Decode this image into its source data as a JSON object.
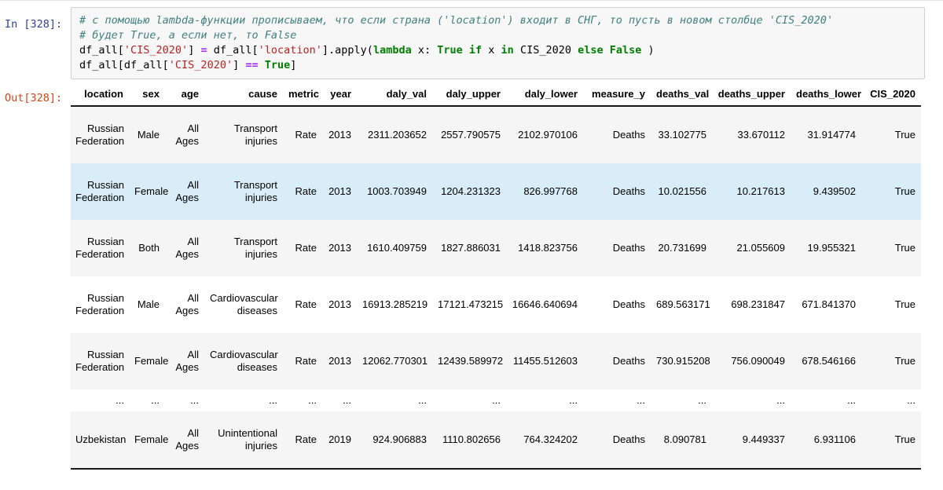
{
  "cell": {
    "in_prompt": "In [328]:",
    "out_prompt": "Out[328]:",
    "code_lines": [
      {
        "tokens": [
          {
            "t": "# с помощью lambda-функции прописываем, что если страна ('location') входит в СНГ, то пусть в новом столбце 'CIS_2020'",
            "c": "comment"
          }
        ]
      },
      {
        "tokens": [
          {
            "t": "# будет True, а если нет, то False",
            "c": "comment"
          }
        ]
      },
      {
        "tokens": [
          {
            "t": "df_all[",
            "c": "plain"
          },
          {
            "t": "'CIS_2020'",
            "c": "string"
          },
          {
            "t": "] ",
            "c": "plain"
          },
          {
            "t": "=",
            "c": "op"
          },
          {
            "t": " df_all[",
            "c": "plain"
          },
          {
            "t": "'location'",
            "c": "string"
          },
          {
            "t": "].apply(",
            "c": "plain"
          },
          {
            "t": "lambda",
            "c": "kw"
          },
          {
            "t": " x: ",
            "c": "plain"
          },
          {
            "t": "True",
            "c": "kw"
          },
          {
            "t": " ",
            "c": "plain"
          },
          {
            "t": "if",
            "c": "kw"
          },
          {
            "t": " x ",
            "c": "plain"
          },
          {
            "t": "in",
            "c": "kw"
          },
          {
            "t": " CIS_2020 ",
            "c": "plain"
          },
          {
            "t": "else",
            "c": "kw"
          },
          {
            "t": " ",
            "c": "plain"
          },
          {
            "t": "False",
            "c": "kw"
          },
          {
            "t": " )",
            "c": "plain"
          }
        ]
      },
      {
        "tokens": [
          {
            "t": "df_all[df_all[",
            "c": "plain"
          },
          {
            "t": "'CIS_2020'",
            "c": "string"
          },
          {
            "t": "] ",
            "c": "plain"
          },
          {
            "t": "==",
            "c": "op"
          },
          {
            "t": " ",
            "c": "plain"
          },
          {
            "t": "True",
            "c": "kw"
          },
          {
            "t": "]",
            "c": "plain"
          }
        ]
      }
    ]
  },
  "table": {
    "columns": [
      "location",
      "sex",
      "age",
      "cause",
      "metric",
      "year",
      "daly_val",
      "daly_upper",
      "daly_lower",
      "measure_y",
      "deaths_val",
      "deaths_upper",
      "deaths_lower",
      "CIS_2020"
    ],
    "rows": [
      [
        "Russian Federation",
        "Male",
        "All Ages",
        "Transport injuries",
        "Rate",
        "2013",
        "2311.203652",
        "2557.790575",
        "2102.970106",
        "Deaths",
        "33.102775",
        "33.670112",
        "31.914774",
        "True"
      ],
      [
        "Russian Federation",
        "Female",
        "All Ages",
        "Transport injuries",
        "Rate",
        "2013",
        "1003.703949",
        "1204.231323",
        "826.997768",
        "Deaths",
        "10.021556",
        "10.217613",
        "9.439502",
        "True"
      ],
      [
        "Russian Federation",
        "Both",
        "All Ages",
        "Transport injuries",
        "Rate",
        "2013",
        "1610.409759",
        "1827.886031",
        "1418.823756",
        "Deaths",
        "20.731699",
        "21.055609",
        "19.955321",
        "True"
      ],
      [
        "Russian Federation",
        "Male",
        "All Ages",
        "Cardiovascular diseases",
        "Rate",
        "2013",
        "16913.285219",
        "17121.473215",
        "16646.640694",
        "Deaths",
        "689.563171",
        "698.231847",
        "671.841370",
        "True"
      ],
      [
        "Russian Federation",
        "Female",
        "All Ages",
        "Cardiovascular diseases",
        "Rate",
        "2013",
        "12062.770301",
        "12439.589972",
        "11455.512603",
        "Deaths",
        "730.915208",
        "756.090049",
        "678.546166",
        "True"
      ],
      [
        "...",
        "...",
        "...",
        "...",
        "...",
        "...",
        "...",
        "...",
        "...",
        "...",
        "...",
        "...",
        "...",
        "..."
      ],
      [
        "Uzbekistan",
        "Female",
        "All Ages",
        "Unintentional injuries",
        "Rate",
        "2019",
        "924.906883",
        "1110.802656",
        "764.324202",
        "Deaths",
        "8.090781",
        "9.449337",
        "6.931106",
        "True"
      ]
    ],
    "hover_row_index": 1
  },
  "colors": {
    "prompt_in": "#303F9F",
    "prompt_out": "#D84315",
    "code_cell_bg": "#F7F7F7",
    "code_cell_border": "#CFCFCF",
    "syntax_comment": "#408080",
    "syntax_string": "#BA2121",
    "syntax_keyword": "#008000",
    "syntax_operator": "#AA22FF",
    "row_stripe": "#F5F5F5",
    "row_hover": "#D9EDF8"
  }
}
